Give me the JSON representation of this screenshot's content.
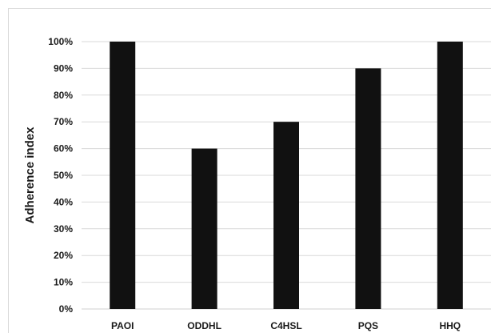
{
  "chart_data": {
    "type": "bar",
    "title": "",
    "xlabel": "",
    "ylabel": "Adherence index",
    "categories": [
      "PAOI",
      "ODDHL",
      "C4HSL",
      "PQS",
      "HHQ"
    ],
    "values": [
      1.0,
      0.6,
      0.7,
      0.9,
      1.0
    ],
    "ylim": [
      0,
      1
    ],
    "yticks": [
      0,
      0.1,
      0.2,
      0.3,
      0.4,
      0.5,
      0.6,
      0.7,
      0.8,
      0.9,
      1.0
    ],
    "ytick_labels": [
      "0%",
      "10%",
      "20%",
      "30%",
      "40%",
      "50%",
      "60%",
      "70%",
      "80%",
      "90%",
      "100%"
    ],
    "grid": true,
    "legend": "none",
    "colors": {
      "bar": "#111111",
      "grid": "#d9d9d9",
      "frame": "#d9d9d9",
      "text": "#1a1a1a"
    }
  }
}
